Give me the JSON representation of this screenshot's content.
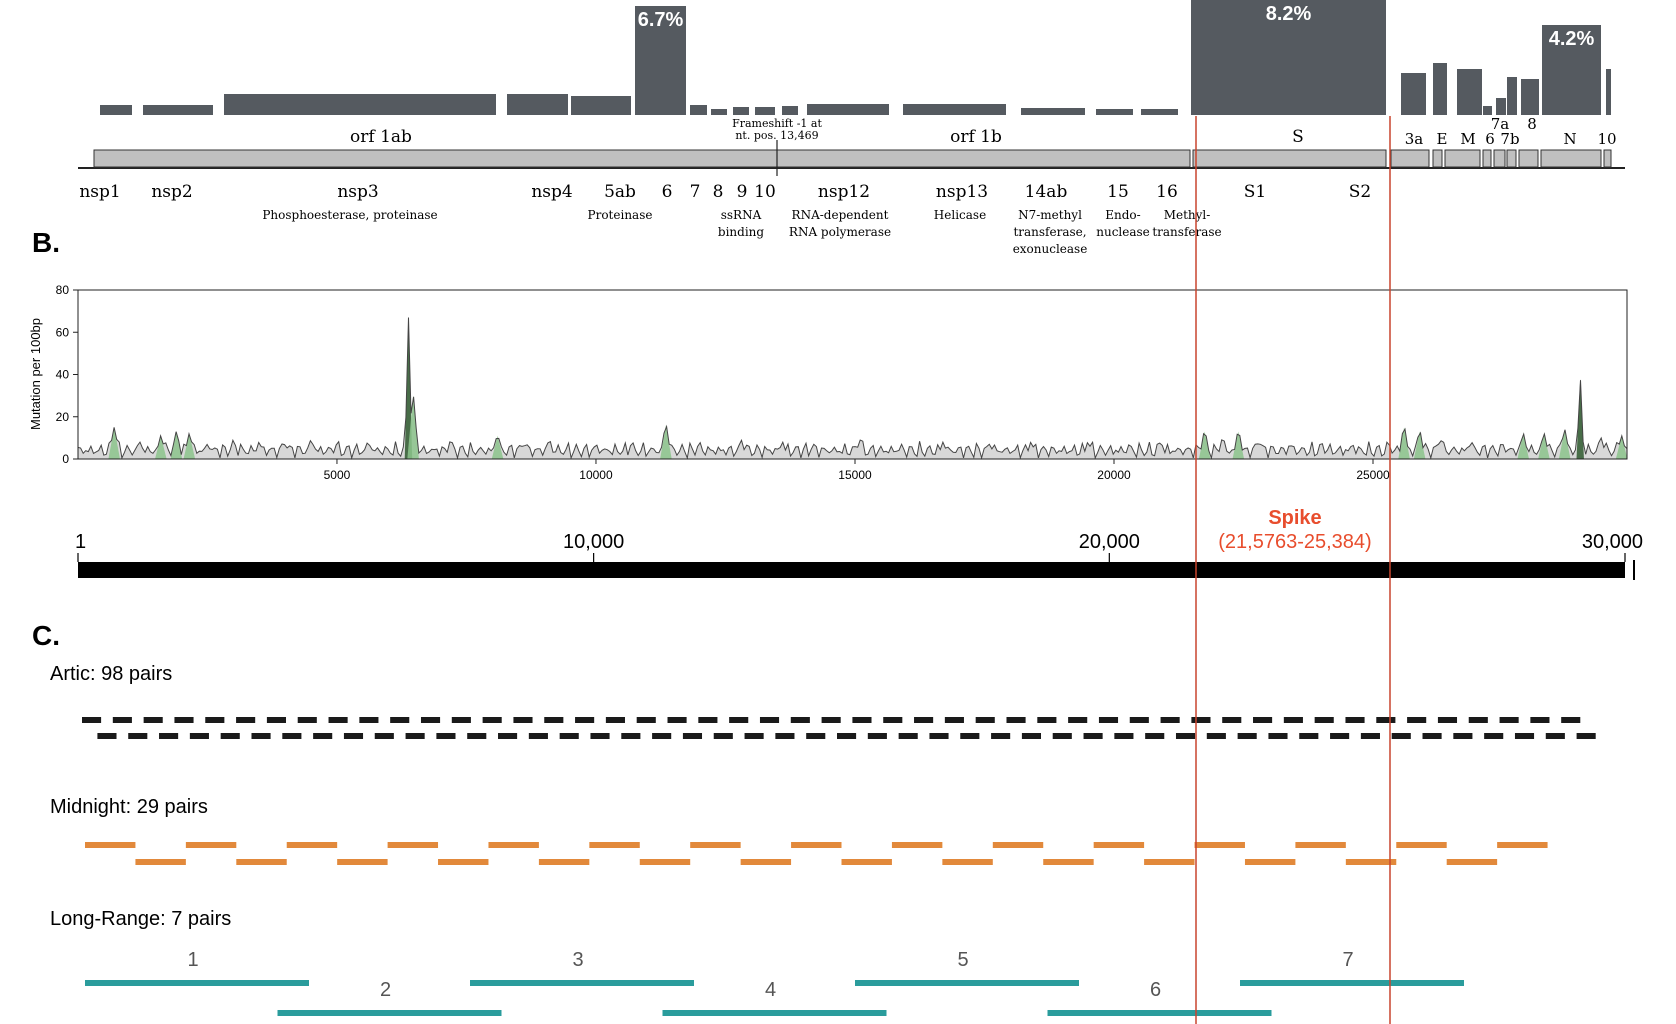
{
  "panel_b_label": "B.",
  "panel_c_label": "C.",
  "top_bars": [
    {
      "x1": 100,
      "x2": 132,
      "h": 10
    },
    {
      "x1": 143,
      "x2": 213,
      "h": 10
    },
    {
      "x1": 224,
      "x2": 496,
      "h": 21
    },
    {
      "x1": 507,
      "x2": 568,
      "h": 21
    },
    {
      "x1": 571,
      "x2": 631,
      "h": 19
    },
    {
      "x1": 635,
      "x2": 686,
      "h": 109,
      "label": "6.7%"
    },
    {
      "x1": 690,
      "x2": 707,
      "h": 10
    },
    {
      "x1": 711,
      "x2": 727,
      "h": 6
    },
    {
      "x1": 733,
      "x2": 749,
      "h": 8
    },
    {
      "x1": 755,
      "x2": 775,
      "h": 8
    },
    {
      "x1": 782,
      "x2": 798,
      "h": 9
    },
    {
      "x1": 807,
      "x2": 889,
      "h": 11
    },
    {
      "x1": 903,
      "x2": 1006,
      "h": 11
    },
    {
      "x1": 1021,
      "x2": 1085,
      "h": 7
    },
    {
      "x1": 1096,
      "x2": 1133,
      "h": 6
    },
    {
      "x1": 1141,
      "x2": 1178,
      "h": 6
    },
    {
      "x1": 1191,
      "x2": 1386,
      "h": 115,
      "label": "8.2%"
    },
    {
      "x1": 1401,
      "x2": 1426,
      "h": 42
    },
    {
      "x1": 1433,
      "x2": 1447,
      "h": 52
    },
    {
      "x1": 1457,
      "x2": 1482,
      "h": 46
    },
    {
      "x1": 1483,
      "x2": 1492,
      "h": 9
    },
    {
      "x1": 1496,
      "x2": 1506,
      "h": 17
    },
    {
      "x1": 1507,
      "x2": 1517,
      "h": 38
    },
    {
      "x1": 1521,
      "x2": 1539,
      "h": 36
    },
    {
      "x1": 1542,
      "x2": 1601,
      "h": 90,
      "label": "4.2%"
    },
    {
      "x1": 1606,
      "x2": 1611,
      "h": 46
    }
  ],
  "gene_boxes": [
    {
      "x1": 94,
      "x2": 1190
    },
    {
      "x1": 1193,
      "x2": 1386
    },
    {
      "x1": 1391,
      "x2": 1429
    },
    {
      "x1": 1433,
      "x2": 1442
    },
    {
      "x1": 1445,
      "x2": 1480
    },
    {
      "x1": 1483,
      "x2": 1491
    },
    {
      "x1": 1494,
      "x2": 1505
    },
    {
      "x1": 1507,
      "x2": 1516
    },
    {
      "x1": 1519,
      "x2": 1538
    },
    {
      "x1": 1541,
      "x2": 1601
    },
    {
      "x1": 1604,
      "x2": 1611
    }
  ],
  "orf_labels": [
    {
      "text": "orf 1ab",
      "x": 381
    },
    {
      "text": "orf 1b",
      "x": 976
    },
    {
      "text": "S",
      "x": 1298
    }
  ],
  "frameshift_note": [
    "Frameshift -1 at",
    "nt. pos. 13,469"
  ],
  "accessory_labels": [
    {
      "text": "3a",
      "x": 1414,
      "y": 141
    },
    {
      "text": "E",
      "x": 1442,
      "y": 141
    },
    {
      "text": "M",
      "x": 1468,
      "y": 141
    },
    {
      "text": "6",
      "x": 1490,
      "y": 141
    },
    {
      "text": "7b",
      "x": 1510,
      "y": 141
    },
    {
      "text": "N",
      "x": 1570,
      "y": 141
    },
    {
      "text": "10",
      "x": 1607,
      "y": 141
    },
    {
      "text": "7a",
      "x": 1500,
      "y": 126
    },
    {
      "text": "8",
      "x": 1532,
      "y": 126
    }
  ],
  "nsp_labels": [
    {
      "text": "nsp1",
      "x": 100
    },
    {
      "text": "nsp2",
      "x": 172
    },
    {
      "text": "nsp3",
      "x": 358
    },
    {
      "text": "nsp4",
      "x": 552
    },
    {
      "text": "5ab",
      "x": 620
    },
    {
      "text": "6",
      "x": 667
    },
    {
      "text": "7",
      "x": 695
    },
    {
      "text": "8",
      "x": 718
    },
    {
      "text": "9",
      "x": 742
    },
    {
      "text": "10",
      "x": 765
    },
    {
      "text": "nsp12",
      "x": 844
    },
    {
      "text": "nsp13",
      "x": 962
    },
    {
      "text": "14ab",
      "x": 1046
    },
    {
      "text": "15",
      "x": 1118
    },
    {
      "text": "16",
      "x": 1167
    },
    {
      "text": "S1",
      "x": 1255
    },
    {
      "text": "S2",
      "x": 1360
    }
  ],
  "nsp_functions": [
    {
      "lines": [
        "Phosphoesterase, proteinase"
      ],
      "x": 350
    },
    {
      "lines": [
        "Proteinase"
      ],
      "x": 620
    },
    {
      "lines": [
        "ssRNA",
        "binding"
      ],
      "x": 741
    },
    {
      "lines": [
        "RNA-dependent",
        "RNA polymerase"
      ],
      "x": 840
    },
    {
      "lines": [
        "Helicase"
      ],
      "x": 960
    },
    {
      "lines": [
        "N7-methyl",
        "transferase,",
        "exonuclease"
      ],
      "x": 1050
    },
    {
      "lines": [
        "Endo-",
        "nuclease"
      ],
      "x": 1123
    },
    {
      "lines": [
        "Methyl-",
        "transferase"
      ],
      "x": 1187
    }
  ],
  "mutation_plot": {
    "ylabel": "Mutation per 100bp",
    "xlim": [
      1,
      29903
    ],
    "ylim": [
      0,
      80
    ],
    "yticks": [
      0,
      20,
      40,
      60,
      80
    ],
    "xticks": [
      5000,
      10000,
      15000,
      20000,
      25000
    ],
    "baseline": 4,
    "peaks": [
      {
        "pos": 700,
        "val": 15
      },
      {
        "pos": 1200,
        "val": 8
      },
      {
        "pos": 1600,
        "val": 11
      },
      {
        "pos": 1900,
        "val": 13
      },
      {
        "pos": 2150,
        "val": 12
      },
      {
        "pos": 2500,
        "val": 7
      },
      {
        "pos": 3000,
        "val": 9
      },
      {
        "pos": 3500,
        "val": 8
      },
      {
        "pos": 4000,
        "val": 7
      },
      {
        "pos": 4500,
        "val": 9
      },
      {
        "pos": 5000,
        "val": 7
      },
      {
        "pos": 5600,
        "val": 8
      },
      {
        "pos": 6380,
        "val": 67
      },
      {
        "pos": 6470,
        "val": 30
      },
      {
        "pos": 7200,
        "val": 9
      },
      {
        "pos": 8100,
        "val": 11
      },
      {
        "pos": 8600,
        "val": 7
      },
      {
        "pos": 9100,
        "val": 9
      },
      {
        "pos": 10000,
        "val": 7
      },
      {
        "pos": 10700,
        "val": 8
      },
      {
        "pos": 11350,
        "val": 16
      },
      {
        "pos": 12000,
        "val": 8
      },
      {
        "pos": 12800,
        "val": 9
      },
      {
        "pos": 13600,
        "val": 8
      },
      {
        "pos": 14200,
        "val": 7
      },
      {
        "pos": 15100,
        "val": 9
      },
      {
        "pos": 15900,
        "val": 7
      },
      {
        "pos": 16700,
        "val": 8
      },
      {
        "pos": 17600,
        "val": 7
      },
      {
        "pos": 18400,
        "val": 8
      },
      {
        "pos": 19500,
        "val": 8
      },
      {
        "pos": 20300,
        "val": 7
      },
      {
        "pos": 20900,
        "val": 8
      },
      {
        "pos": 21750,
        "val": 13
      },
      {
        "pos": 22100,
        "val": 10
      },
      {
        "pos": 22400,
        "val": 13
      },
      {
        "pos": 22800,
        "val": 8
      },
      {
        "pos": 23400,
        "val": 7
      },
      {
        "pos": 24000,
        "val": 8
      },
      {
        "pos": 24600,
        "val": 7
      },
      {
        "pos": 25300,
        "val": 7
      },
      {
        "pos": 25600,
        "val": 15
      },
      {
        "pos": 25900,
        "val": 13
      },
      {
        "pos": 26300,
        "val": 9
      },
      {
        "pos": 26900,
        "val": 8
      },
      {
        "pos": 27500,
        "val": 7
      },
      {
        "pos": 27900,
        "val": 12
      },
      {
        "pos": 28300,
        "val": 12
      },
      {
        "pos": 28700,
        "val": 14
      },
      {
        "pos": 29000,
        "val": 38
      },
      {
        "pos": 29400,
        "val": 10
      },
      {
        "pos": 29800,
        "val": 11
      }
    ]
  },
  "genome_axis": {
    "ticks": [
      {
        "label": "1",
        "pos": 1
      },
      {
        "label": "10,000",
        "pos": 10000
      },
      {
        "label": "20,000",
        "pos": 20000
      },
      {
        "label": "30,000",
        "pos": 30000
      }
    ],
    "spike_label": "Spike",
    "spike_range": "(21,5763-25,384)"
  },
  "schemes": [
    {
      "label": "Artic: 98 pairs",
      "count": 98,
      "color": "#1a1a1a"
    },
    {
      "label": "Midnight: 29 pairs",
      "count": 29,
      "color": "#e2893b"
    },
    {
      "label": "Long-Range: 7 pairs",
      "count": 7,
      "color": "#2a9c9c",
      "amplicon_numbers": [
        "1",
        "2",
        "3",
        "4",
        "5",
        "6",
        "7"
      ]
    }
  ],
  "colors": {
    "bar": "#555a60",
    "gene_box": "#c0c0c0",
    "spike": "#e84d2d",
    "spike_line": "#c9452e",
    "plot_fill": "#d8d8d8",
    "plot_green": "#8cc48c",
    "plot_dark": "#2f5b2f"
  }
}
